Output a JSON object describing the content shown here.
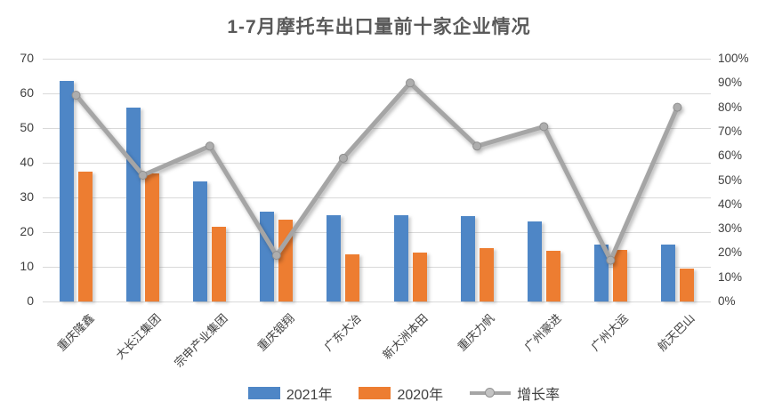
{
  "title": "1-7月摩托车出口量前十家企业情况",
  "colors": {
    "bar_2021": "#4E86C6",
    "bar_2020": "#ED7D31",
    "growth_line": "#A5A5A5",
    "title_text": "#595959",
    "axis_text": "#404040",
    "gridline": "#D9D9D9"
  },
  "chart_data": {
    "type": "bar",
    "subtype": "bar-line-combo",
    "title": "1-7月摩托车出口量前十家企业情况",
    "categories": [
      "重庆隆鑫",
      "大长江集团",
      "宗申产业集团",
      "重庆银翔",
      "广东大冶",
      "新大洲本田",
      "重庆力帆",
      "广州豪进",
      "广州大运",
      "航天巴山"
    ],
    "series": [
      {
        "name": "2021年",
        "type": "bar",
        "axis": "left",
        "color": "#4E86C6",
        "values": [
          63.5,
          56,
          34.5,
          26,
          25,
          25,
          24.5,
          23,
          16.5,
          16.5
        ]
      },
      {
        "name": "2020年",
        "type": "bar",
        "axis": "left",
        "color": "#ED7D31",
        "values": [
          37.5,
          37,
          21.5,
          23.5,
          13.5,
          14,
          15.5,
          14.5,
          15,
          9.5
        ]
      },
      {
        "name": "增长率",
        "type": "line",
        "axis": "right",
        "color": "#A5A5A5",
        "unit": "%",
        "values": [
          85,
          52,
          64,
          19,
          59,
          90,
          64,
          72,
          17,
          80
        ]
      }
    ],
    "left_axis": {
      "min": 0,
      "max": 70,
      "step": 10,
      "tick_labels": [
        "70",
        "60",
        "50",
        "40",
        "30",
        "20",
        "10",
        "0"
      ]
    },
    "right_axis": {
      "min": 0,
      "max": 100,
      "step": 10,
      "unit": "%",
      "tick_labels": [
        "100%",
        "90%",
        "80%",
        "70%",
        "60%",
        "50%",
        "40%",
        "30%",
        "20%",
        "10%",
        "0%"
      ]
    },
    "grid": true,
    "legend_position": "bottom",
    "legend": [
      "2021年",
      "2020年",
      "增长率"
    ]
  }
}
